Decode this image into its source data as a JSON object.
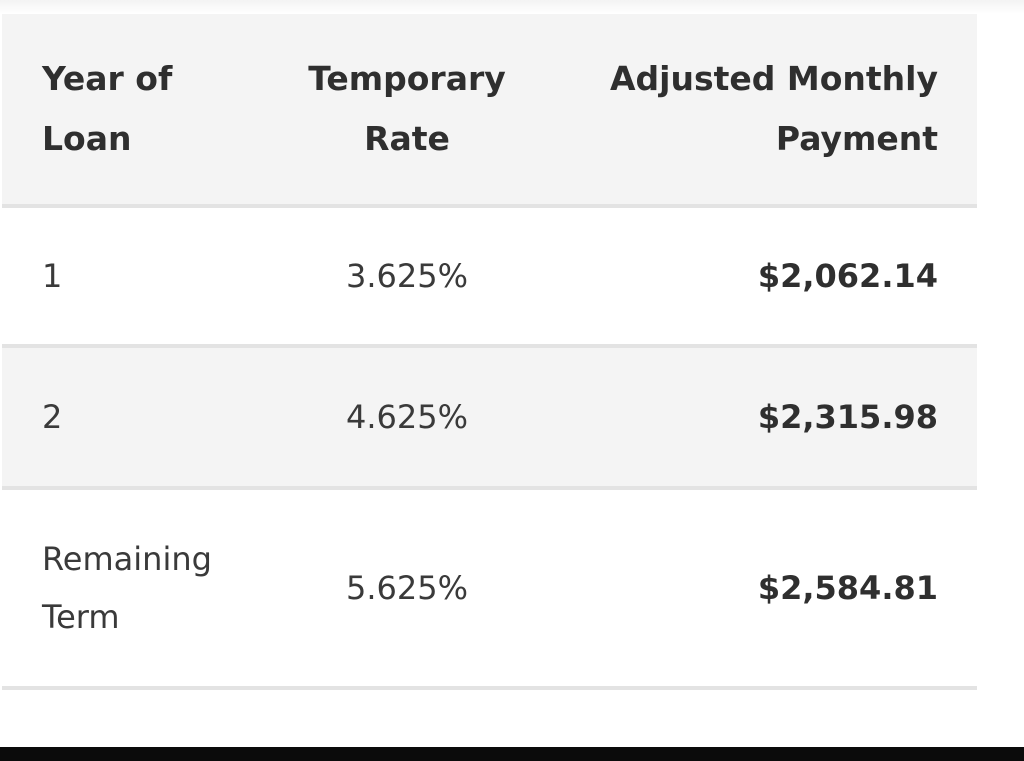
{
  "table": {
    "headers": [
      {
        "line1": "Year of",
        "line2": "Loan"
      },
      {
        "line1": "Temporary",
        "line2": "Rate"
      },
      {
        "line1": "Adjusted Monthly",
        "line2": "Payment"
      }
    ],
    "rows": [
      {
        "year_line1": "1",
        "year_line2": "",
        "rate": "3.625%",
        "payment": "$2,062.14"
      },
      {
        "year_line1": "2",
        "year_line2": "",
        "rate": "4.625%",
        "payment": "$2,315.98"
      },
      {
        "year_line1": "Remaining",
        "year_line2": "Term",
        "rate": "5.625%",
        "payment": "$2,584.81"
      }
    ]
  },
  "colors": {
    "header_bg": "#f4f4f4",
    "stripe_bg": "#f4f4f4",
    "divider": "#e3e3e3",
    "text": "#2f2f2f"
  }
}
